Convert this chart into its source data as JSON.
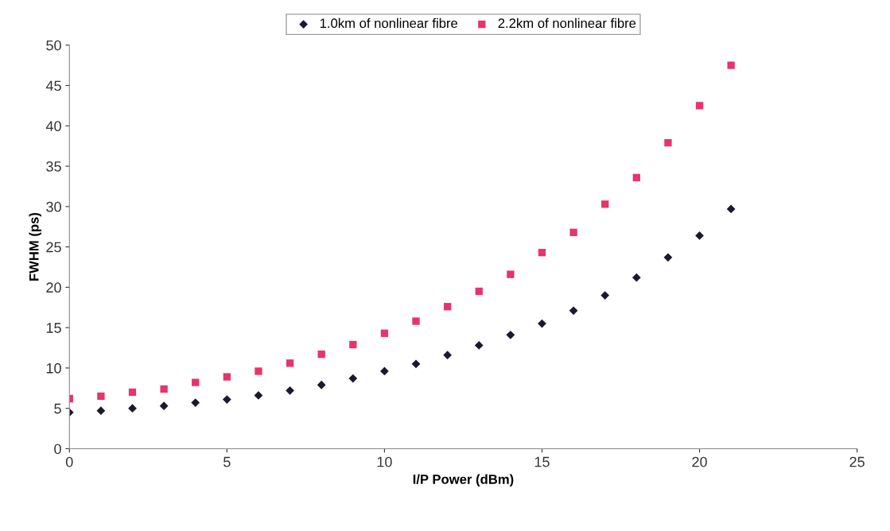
{
  "chart_data": {
    "type": "scatter",
    "xlabel": "I/P Power (dBm)",
    "ylabel": "FWHM (ps)",
    "x": [
      0,
      1,
      2,
      3,
      4,
      5,
      6,
      7,
      8,
      9,
      10,
      11,
      12,
      13,
      14,
      15,
      16,
      17,
      18,
      19,
      20,
      21
    ],
    "series": [
      {
        "name": "1.0km of nonlinear fibre",
        "color": "#1a1a2e",
        "marker": "diamond",
        "values": [
          4.5,
          4.7,
          5.0,
          5.3,
          5.7,
          6.1,
          6.6,
          7.2,
          7.9,
          8.7,
          9.6,
          10.5,
          11.6,
          12.8,
          14.1,
          15.5,
          17.1,
          19.0,
          21.2,
          23.7,
          26.4,
          29.7
        ]
      },
      {
        "name": "2.2km of nonlinear fibre",
        "color": "#e8336b",
        "marker": "square",
        "values": [
          6.2,
          6.5,
          7.0,
          7.4,
          8.2,
          8.9,
          9.6,
          10.6,
          11.7,
          12.9,
          14.3,
          15.8,
          17.6,
          19.5,
          21.6,
          24.3,
          26.8,
          30.3,
          33.6,
          37.9,
          42.5,
          47.5
        ]
      }
    ],
    "xlim": [
      0,
      25
    ],
    "xticks": [
      0,
      5,
      10,
      15,
      20,
      25
    ],
    "ylim": [
      0,
      50
    ],
    "yticks": [
      0,
      5,
      10,
      15,
      20,
      25,
      30,
      35,
      40,
      45,
      50
    ],
    "grid": false,
    "legend": "top"
  }
}
